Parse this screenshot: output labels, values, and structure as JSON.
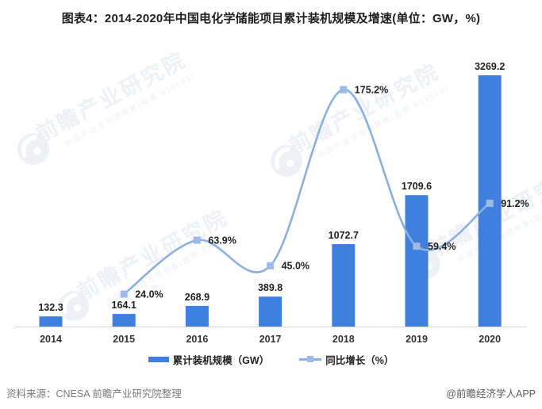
{
  "title": "图表4：2014-2020年中国电化学储能项目累计装机规模及增速(单位：GW，%)",
  "chart_data": {
    "type": "bar+line combo",
    "categories": [
      "2014",
      "2015",
      "2016",
      "2017",
      "2018",
      "2019",
      "2020"
    ],
    "series": [
      {
        "name": "累计装机规模（GW）",
        "type": "bar",
        "axis": "left",
        "color": "#3f80de",
        "values": [
          132.3,
          164.1,
          268.9,
          389.8,
          1072.7,
          1709.6,
          3269.2
        ],
        "labels": [
          "132.3",
          "164.1",
          "268.9",
          "389.8",
          "1072.7",
          "1709.6",
          "3269.2"
        ]
      },
      {
        "name": "同比增长（%）",
        "type": "line",
        "axis": "right",
        "color": "#8cb0df",
        "marker_color": "#9dbbe4",
        "values": [
          null,
          24.0,
          63.9,
          45.0,
          175.2,
          59.4,
          91.2
        ],
        "labels": [
          "",
          "24.0%",
          "63.9%",
          "45.0%",
          "175.2%",
          "59.4%",
          "91.2%"
        ]
      }
    ],
    "title": "图表4：2014-2020年中国电化学储能项目累计装机规模及增速(单位：GW，%)",
    "xlabel": "",
    "ylabel_left": "GW",
    "ylabel_right": "%",
    "ylim_left": [
      0,
      3400
    ],
    "ylim_right": [
      0,
      182
    ],
    "gridlines": false,
    "axes_tick_labels_hidden": true,
    "legend_position": "bottom",
    "label_color": "#1f1f1f",
    "axis_line_color": "#d9d9d9",
    "tick_label_color": "#333333"
  },
  "legend": {
    "bar_label": "累计装机规模（GW）",
    "line_label": "同比增长（%）"
  },
  "footer": {
    "source": "资料来源：CNESA 前瞻产业研究院整理",
    "credit": "@前瞻经济学人APP"
  },
  "watermark": {
    "text": "前瞻产业研究院",
    "subtext": "中国产业咨询领导者(股票:839599)"
  }
}
